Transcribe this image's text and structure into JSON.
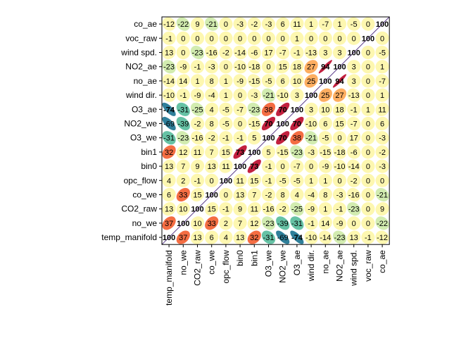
{
  "chart_data": {
    "type": "heatmap",
    "subtype": "correlation-ellipse-matrix",
    "x_labels": [
      "temp_manifold",
      "no_we",
      "CO2_raw",
      "co_we",
      "opc_flow",
      "bin0",
      "bin1",
      "O3_we",
      "NO2_we",
      "O3_ae",
      "wind dir.",
      "no_ae",
      "NO2_ae",
      "wind spd.",
      "voc_raw",
      "co_ae"
    ],
    "y_labels": [
      "co_ae",
      "voc_raw",
      "wind spd.",
      "NO2_ae",
      "no_ae",
      "wind dir.",
      "O3_ae",
      "NO2_we",
      "O3_we",
      "bin1",
      "bin0",
      "opc_flow",
      "co_we",
      "CO2_raw",
      "no_we",
      "temp_manifold"
    ],
    "values": [
      [
        -12,
        -22,
        9,
        -21,
        0,
        -3,
        -2,
        -3,
        6,
        11,
        1,
        -7,
        1,
        -5,
        0,
        100
      ],
      [
        -1,
        0,
        0,
        0,
        0,
        0,
        0,
        0,
        0,
        1,
        0,
        0,
        0,
        0,
        100,
        0
      ],
      [
        13,
        0,
        -23,
        -16,
        -2,
        -14,
        -6,
        17,
        -7,
        -1,
        -13,
        3,
        3,
        100,
        0,
        -5
      ],
      [
        -23,
        -9,
        -1,
        -3,
        0,
        -10,
        -18,
        0,
        15,
        18,
        27,
        94,
        100,
        3,
        0,
        1
      ],
      [
        -14,
        14,
        1,
        8,
        1,
        -9,
        -15,
        -5,
        6,
        10,
        25,
        100,
        94,
        3,
        0,
        -7
      ],
      [
        -10,
        -1,
        -9,
        -4,
        1,
        0,
        -3,
        -21,
        -10,
        3,
        100,
        25,
        27,
        -13,
        0,
        1
      ],
      [
        -74,
        -31,
        -25,
        4,
        -5,
        -7,
        -23,
        38,
        70,
        100,
        3,
        10,
        18,
        -1,
        1,
        11
      ],
      [
        -69,
        -39,
        -2,
        8,
        -5,
        0,
        -15,
        70,
        100,
        70,
        -10,
        6,
        15,
        -7,
        0,
        6
      ],
      [
        -31,
        -23,
        -16,
        -2,
        -1,
        -1,
        5,
        100,
        70,
        38,
        -21,
        -5,
        0,
        17,
        0,
        -3
      ],
      [
        32,
        12,
        11,
        7,
        15,
        73,
        100,
        5,
        -15,
        -23,
        -3,
        -15,
        -18,
        -6,
        0,
        -2
      ],
      [
        13,
        7,
        9,
        13,
        11,
        100,
        73,
        -1,
        0,
        -7,
        0,
        -9,
        -10,
        -14,
        0,
        -3
      ],
      [
        4,
        2,
        -1,
        0,
        100,
        11,
        15,
        -1,
        -5,
        -5,
        1,
        1,
        0,
        -2,
        0,
        0
      ],
      [
        6,
        33,
        15,
        100,
        0,
        13,
        7,
        -2,
        8,
        4,
        -4,
        8,
        -3,
        -16,
        0,
        -21
      ],
      [
        13,
        10,
        100,
        15,
        -1,
        9,
        11,
        -16,
        -2,
        -25,
        -9,
        1,
        -1,
        -23,
        0,
        9
      ],
      [
        37,
        100,
        10,
        33,
        2,
        7,
        12,
        -23,
        -39,
        -31,
        -1,
        14,
        -9,
        0,
        0,
        -22
      ],
      [
        100,
        37,
        13,
        6,
        4,
        13,
        32,
        -31,
        -69,
        -74,
        -10,
        -14,
        -23,
        13,
        -1,
        -12
      ]
    ],
    "value_scale": "correlation x 100",
    "range": [
      -100,
      100
    ],
    "colors": {
      "strong_positive": "#c2203f",
      "positive": "#f46d43",
      "weak_positive": "#fdae61",
      "neutral": "#fdf7b0",
      "weak_negative": "#d2ecb0",
      "negative": "#66c2a5",
      "strong_negative": "#2f7f9a",
      "diagonal_line": "#5a3a8a",
      "text": "#000000"
    }
  }
}
